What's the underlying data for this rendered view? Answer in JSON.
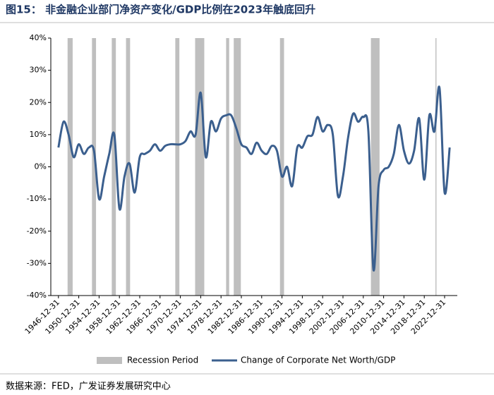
{
  "chart_data": {
    "type": "line",
    "title": "图15： 非金融企业部门净资产变化/GDP比例在2023年触底回升",
    "source": "数据来源：FED，广发证券发展研究中心",
    "x": [
      1946,
      1947,
      1948,
      1949,
      1950,
      1951,
      1952,
      1953,
      1954,
      1955,
      1956,
      1957,
      1958,
      1959,
      1960,
      1961,
      1962,
      1963,
      1964,
      1965,
      1966,
      1967,
      1968,
      1969,
      1970,
      1971,
      1972,
      1973,
      1974,
      1975,
      1976,
      1977,
      1978,
      1979,
      1980,
      1981,
      1982,
      1983,
      1984,
      1985,
      1986,
      1987,
      1988,
      1989,
      1990,
      1991,
      1992,
      1993,
      1994,
      1995,
      1996,
      1997,
      1998,
      1999,
      2000,
      2001,
      2002,
      2003,
      2004,
      2005,
      2006,
      2007,
      2008,
      2009,
      2010,
      2011,
      2012,
      2013,
      2014,
      2015,
      2016,
      2017,
      2018,
      2019,
      2020,
      2021,
      2022,
      2023
    ],
    "series": [
      {
        "name": "Change of Corporate Net Worth/GDP",
        "color": "#3b5f8e",
        "values": [
          6,
          14,
          10,
          3,
          7,
          4,
          6,
          5,
          -10,
          -3,
          4,
          10,
          -13,
          -3,
          1,
          -8,
          3,
          4,
          5,
          7,
          5,
          6.5,
          7,
          7,
          7,
          8,
          11,
          10,
          23,
          3,
          14,
          11,
          15,
          16,
          16,
          12,
          7,
          6,
          4,
          7.5,
          5,
          4,
          6.5,
          5,
          -3,
          0,
          -6,
          6,
          6,
          9.5,
          10,
          15.5,
          11,
          13,
          10,
          -9,
          -3,
          9,
          16.5,
          14,
          15.5,
          11,
          -32,
          -6,
          -1,
          0,
          4,
          13,
          5,
          1,
          5,
          15,
          -4,
          16,
          11,
          24.5,
          -8,
          6
        ]
      }
    ],
    "recession": {
      "name": "Recession Period",
      "color": "#bfbfbf",
      "spans": [
        [
          1947.8,
          1948.8
        ],
        [
          1952.6,
          1953.4
        ],
        [
          1956.5,
          1957.3
        ],
        [
          1959.3,
          1960.1
        ],
        [
          1969.0,
          1969.8
        ],
        [
          1972.9,
          1974.7
        ],
        [
          1979.0,
          1979.6
        ],
        [
          1980.5,
          1981.9
        ],
        [
          1989.6,
          1990.4
        ],
        [
          2007.5,
          2009.2
        ],
        [
          2020.2,
          2020.4
        ]
      ]
    },
    "xlim": [
      1944.5,
      2024.5
    ],
    "xticks": [
      {
        "value": 1946,
        "label": "1946-12-31"
      },
      {
        "value": 1950,
        "label": "1950-12-31"
      },
      {
        "value": 1954,
        "label": "1954-12-31"
      },
      {
        "value": 1958,
        "label": "1958-12-31"
      },
      {
        "value": 1962,
        "label": "1962-12-31"
      },
      {
        "value": 1966,
        "label": "1966-12-31"
      },
      {
        "value": 1970,
        "label": "1970-12-31"
      },
      {
        "value": 1974,
        "label": "1974-12-31"
      },
      {
        "value": 1978,
        "label": "1978-12-31"
      },
      {
        "value": 1982,
        "label": "1982-12-31"
      },
      {
        "value": 1986,
        "label": "1986-12-31"
      },
      {
        "value": 1990,
        "label": "1990-12-31"
      },
      {
        "value": 1994,
        "label": "1994-12-31"
      },
      {
        "value": 1998,
        "label": "1998-12-31"
      },
      {
        "value": 2002,
        "label": "2002-12-31"
      },
      {
        "value": 2006,
        "label": "2006-12-31"
      },
      {
        "value": 2010,
        "label": "2010-12-31"
      },
      {
        "value": 2014,
        "label": "2014-12-31"
      },
      {
        "value": 2018,
        "label": "2018-12-31"
      },
      {
        "value": 2022,
        "label": "2022-12-31"
      }
    ],
    "ylim": [
      -40,
      40
    ],
    "yticks": [
      {
        "value": -40,
        "label": "-40%"
      },
      {
        "value": -30,
        "label": "-30%"
      },
      {
        "value": -20,
        "label": "-20%"
      },
      {
        "value": -10,
        "label": "-10%"
      },
      {
        "value": 0,
        "label": "0%"
      },
      {
        "value": 10,
        "label": "10%"
      },
      {
        "value": 20,
        "label": "20%"
      },
      {
        "value": 30,
        "label": "30%"
      },
      {
        "value": 40,
        "label": "40%"
      }
    ]
  }
}
